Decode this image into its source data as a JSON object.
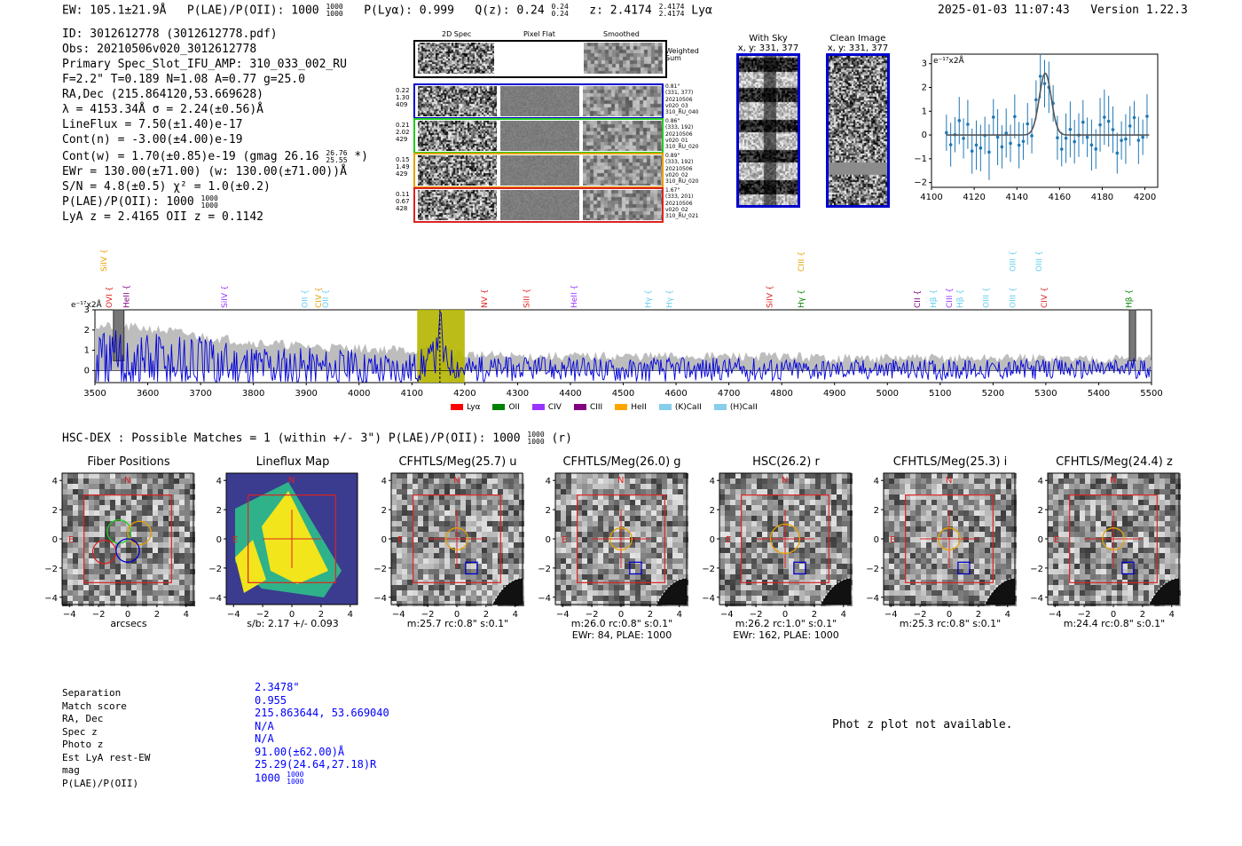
{
  "header": {
    "ew": "EW: 105.1±21.9Å",
    "plae": "P(LAE)/P(OII): 1000",
    "plae_hi": "1000",
    "plae_lo": "1000",
    "plya": "P(Lyα): 0.999",
    "qz": "Q(z): 0.24",
    "qz_hi": "0.24",
    "qz_lo": "0.24",
    "z": "z: 2.4174",
    "z_hi": "2.4174",
    "z_lo": "2.4174",
    "z_line": "Lyα",
    "timestamp": "2025-01-03 11:07:43",
    "version": "Version 1.22.3"
  },
  "info": {
    "id": "ID: 3012612778 (3012612778.pdf)",
    "obs": "Obs: 20210506v020_3012612778",
    "primary": "Primary Spec_Slot_IFU_AMP: 310_033_002_RU",
    "fparams": "F=2.2\"  T=0.189  N=1.08  A=0.77  g=25.0",
    "radec": "RA,Dec (215.864120,53.669628)",
    "lambda": "λ = 4153.34Å  σ = 2.24(±0.56)Å",
    "lineflux": "LineFlux = 7.50(±1.40)e-17",
    "contn": "Cont(n) = -3.00(±4.00)e-19",
    "contw": "Cont(w) = 1.70(±0.85)e-19 (gmag 26.16",
    "gmag_hi": "26.76",
    "gmag_lo": "25.55",
    "contw_end": "*)",
    "ewr": "EWr = 130.00(±71.00) (w: 130.00(±71.00))Å",
    "sn": "S/N = 4.8(±0.5)  χ² = 1.0(±0.2)",
    "plae": "P(LAE)/P(OII): 1000",
    "plae_hi": "1000",
    "plae_lo": "1000",
    "lya_z": "LyA z = 2.4165   OII z = 0.1142"
  },
  "cutouts2d": {
    "col_titles": [
      "2D Spec",
      "Pixel Flat",
      "Smoothed"
    ],
    "weighted_label": "Weighted Sum",
    "rows": [
      {
        "left": [
          "0.22",
          "1.30",
          "409"
        ],
        "right": [
          "0.81\"",
          "(331, 377)",
          "20210506",
          "v020_03",
          "310_RU_040"
        ],
        "color": "#0000cc"
      },
      {
        "left": [
          "0.21",
          "2.02",
          "429"
        ],
        "right": [
          "0.86\"",
          "(333, 192)",
          "20210506",
          "v020_01",
          "310_RU_020"
        ],
        "color": "#22cc22"
      },
      {
        "left": [
          "0.15",
          "1.49",
          "429"
        ],
        "right": [
          "0.89\"",
          "(333, 192)",
          "20210506",
          "v020_02",
          "310_RU_020"
        ],
        "color": "#e6a000"
      },
      {
        "left": [
          "0.11",
          "0.67",
          "428"
        ],
        "right": [
          "1.67\"",
          "(333, 201)",
          "20210506",
          "v020_02",
          "310_RU_021"
        ],
        "color": "#dd2222"
      }
    ]
  },
  "sky": {
    "with_sky_title": "With Sky",
    "with_sky_xy": "x, y: 331, 377",
    "clean_title": "Clean Image",
    "clean_xy": "x, y: 331, 377"
  },
  "zoom_chart": {
    "ylabel": "e⁻¹⁷x2Å",
    "type": "line",
    "x_ticks": [
      "4100",
      "4120",
      "4140",
      "4160",
      "4180",
      "4200"
    ],
    "y_ticks": [
      "3",
      "2",
      "1",
      "0",
      "−1",
      "−2"
    ],
    "xlim": [
      4100,
      4206
    ],
    "ylim": [
      -2.2,
      3.4
    ]
  },
  "spectrum": {
    "ylabel": "e⁻¹⁷x2Å",
    "x_ticks": [
      "3500",
      "3600",
      "3700",
      "3800",
      "3900",
      "4000",
      "4100",
      "4200",
      "4300",
      "4400",
      "4500",
      "4600",
      "4700",
      "4800",
      "4900",
      "5000",
      "5100",
      "5200",
      "5300",
      "5400",
      "5500"
    ],
    "y_ticks": [
      "3",
      "2",
      "1",
      "0"
    ],
    "line_labels": [
      {
        "text": "SiIV",
        "x": 3517,
        "color": "#e6a000",
        "row": 0
      },
      {
        "text": "OVI",
        "x": 3527,
        "color": "#dd2222",
        "row": 1
      },
      {
        "text": "HeII",
        "x": 3560,
        "color": "#800080",
        "row": 1
      },
      {
        "text": "SiIV",
        "x": 3745,
        "color": "#9933ff",
        "row": 1
      },
      {
        "text": "OII",
        "x": 3897,
        "color": "#66ccee",
        "row": 1
      },
      {
        "text": "CIV",
        "x": 3923,
        "color": "#e6a000",
        "row": 1
      },
      {
        "text": "OII",
        "x": 3937,
        "color": "#66ccee",
        "row": 1
      },
      {
        "text": "NV",
        "x": 4237,
        "color": "#dd2222",
        "row": 1
      },
      {
        "text": "SiII",
        "x": 4317,
        "color": "#dd2222",
        "row": 1
      },
      {
        "text": "HeII",
        "x": 4407,
        "color": "#9933ff",
        "row": 1
      },
      {
        "text": "Hγ",
        "x": 4547,
        "color": "#66ccee",
        "row": 1
      },
      {
        "text": "Hγ",
        "x": 4587,
        "color": "#66ccee",
        "row": 1
      },
      {
        "text": "SiIV",
        "x": 4777,
        "color": "#dd2222",
        "row": 1
      },
      {
        "text": "Hγ",
        "x": 4837,
        "color": "#008000",
        "row": 1
      },
      {
        "text": "CIII",
        "x": 4837,
        "color": "#e6a000",
        "row": 0
      },
      {
        "text": "CII",
        "x": 5057,
        "color": "#800080",
        "row": 1
      },
      {
        "text": "Hβ",
        "x": 5087,
        "color": "#66ccee",
        "row": 1
      },
      {
        "text": "CIII",
        "x": 5117,
        "color": "#9933ff",
        "row": 1
      },
      {
        "text": "Hβ",
        "x": 5137,
        "color": "#66ccee",
        "row": 1
      },
      {
        "text": "OIII",
        "x": 5187,
        "color": "#66ccee",
        "row": 1
      },
      {
        "text": "OIII",
        "x": 5237,
        "color": "#66ccee",
        "row": 1
      },
      {
        "text": "OIII",
        "x": 5237,
        "color": "#66ccee",
        "row": 0
      },
      {
        "text": "OIII",
        "x": 5287,
        "color": "#66ccee",
        "row": 0
      },
      {
        "text": "CIV",
        "x": 5297,
        "color": "#dd2222",
        "row": 1
      },
      {
        "text": "Hβ",
        "x": 5457,
        "color": "#008000",
        "row": 1
      }
    ],
    "legend": [
      {
        "label": "Lyα",
        "color": "#ff0000"
      },
      {
        "label": "OII",
        "color": "#008000"
      },
      {
        "label": "CIV",
        "color": "#9933ff"
      },
      {
        "label": "CIII",
        "color": "#800080"
      },
      {
        "label": "HeII",
        "color": "#ffa500"
      },
      {
        "label": "(K)CaII",
        "color": "#87ceeb"
      },
      {
        "label": "(H)CaII",
        "color": "#87ceeb"
      }
    ]
  },
  "chart_data": {
    "type": "line",
    "title": "",
    "xlabel": "",
    "ylabel": "e⁻¹⁷x2Å",
    "xlim": [
      3500,
      5500
    ],
    "ylim": [
      -0.6,
      3
    ],
    "x": [
      3500,
      3600,
      3700,
      3800,
      3900,
      4000,
      4100,
      4150,
      4200,
      4300,
      4400,
      4500,
      4600,
      4700,
      4800,
      4900,
      5000,
      5100,
      5200,
      5300,
      5400,
      5500
    ],
    "series": [
      {
        "name": "spectrum flux",
        "values": [
          0.5,
          1.2,
          0.8,
          0.9,
          0.6,
          0.4,
          0.3,
          2.4,
          0.3,
          0.2,
          0.2,
          0.1,
          0.2,
          0.2,
          0.1,
          0.2,
          0.2,
          0.1,
          0.2,
          0.2,
          0.3,
          0.4
        ]
      },
      {
        "name": "noise envelope",
        "values": [
          2.2,
          2.1,
          1.7,
          1.4,
          1.2,
          1.1,
          1.0,
          1.0,
          0.8,
          0.7,
          0.7,
          0.7,
          0.7,
          0.7,
          0.7,
          0.6,
          0.6,
          0.6,
          0.6,
          0.6,
          0.6,
          0.6
        ]
      }
    ],
    "highlight_range": [
      4110,
      4200
    ]
  },
  "hsc": {
    "summary": "HSC-DEX : Possible Matches = 1 (within +/- 3\")  P(LAE)/P(OII): 1000",
    "summary_hi": "1000",
    "summary_lo": "1000",
    "summary_end": "(r)",
    "tick_labels": [
      "4",
      "2",
      "0",
      "−2",
      "−4"
    ],
    "x_tick_labels": [
      "−4",
      "−2",
      "0",
      "2",
      "4"
    ],
    "panels": [
      {
        "title": "Fiber Positions",
        "cap1": "arcsecs",
        "cap2": ""
      },
      {
        "title": "Lineflux Map",
        "cap1": "s/b: 2.17 +/- 0.093",
        "cap2": ""
      },
      {
        "title": "CFHTLS/Meg(25.7) u",
        "cap1": "m:25.7 rc:0.8\"  s:0.1\"",
        "cap2": ""
      },
      {
        "title": "CFHTLS/Meg(26.0) g",
        "cap1": "m:26.0 rc:0.8\"  s:0.1\"",
        "cap2": "EWr: 84, PLAE: 1000"
      },
      {
        "title": "HSC(26.2) r",
        "cap1": "m:26.2 rc:1.0\"  s:0.1\"",
        "cap2": "EWr: 162, PLAE: 1000"
      },
      {
        "title": "CFHTLS/Meg(25.3) i",
        "cap1": "m:25.3 rc:0.8\"  s:0.1\"",
        "cap2": ""
      },
      {
        "title": "CFHTLS/Meg(24.4) z",
        "cap1": "m:24.4 rc:0.8\"  s:0.1\"",
        "cap2": ""
      }
    ],
    "compass_n": "N",
    "compass_e": "E"
  },
  "match": {
    "labels": [
      "Separation",
      "Match score",
      "RA, Dec",
      "Spec z",
      "Photo z",
      "Est LyA rest-EW",
      "mag",
      "P(LAE)/P(OII)"
    ],
    "values": [
      "2.3478\"",
      "0.955",
      "215.863644, 53.669040",
      "N/A",
      "N/A",
      "91.00(±62.00)Å",
      "25.29(24.64,27.18)R",
      "1000"
    ],
    "plae_hi": "1000",
    "plae_lo": "1000",
    "photz_msg": "Phot z plot not available."
  }
}
